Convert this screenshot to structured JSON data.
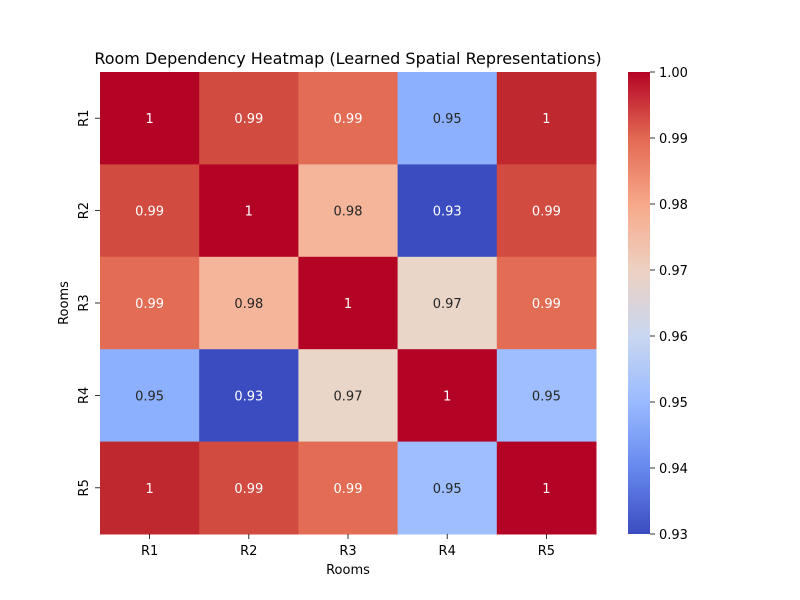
{
  "chart_data": {
    "type": "heatmap",
    "title": "Room Dependency Heatmap (Learned Spatial Representations)",
    "xlabel": "Rooms",
    "ylabel": "Rooms",
    "x_categories": [
      "R1",
      "R2",
      "R3",
      "R4",
      "R5"
    ],
    "y_categories": [
      "R1",
      "R2",
      "R3",
      "R4",
      "R5"
    ],
    "values": [
      [
        1.0,
        0.99,
        0.99,
        0.95,
        1.0
      ],
      [
        0.99,
        1.0,
        0.98,
        0.93,
        0.99
      ],
      [
        0.99,
        0.98,
        1.0,
        0.97,
        0.99
      ],
      [
        0.95,
        0.93,
        0.97,
        1.0,
        0.95
      ],
      [
        1.0,
        0.99,
        0.99,
        0.95,
        1.0
      ]
    ],
    "cell_colors": [
      [
        "#b40426",
        "#d24b40",
        "#e36c55",
        "#8db0fe",
        "#c0282f"
      ],
      [
        "#d24b40",
        "#b40426",
        "#f5b59a",
        "#3b4cc0",
        "#d24b40"
      ],
      [
        "#e36c55",
        "#f5b59a",
        "#b40426",
        "#ead5c9",
        "#e36c55"
      ],
      [
        "#8db0fe",
        "#3b4cc0",
        "#ead5c9",
        "#b40426",
        "#9ebeff"
      ],
      [
        "#c0282f",
        "#d24b40",
        "#e36c55",
        "#9ebeff",
        "#b40426"
      ]
    ],
    "annotations": [
      [
        "1",
        "0.99",
        "0.99",
        "0.95",
        "1"
      ],
      [
        "0.99",
        "1",
        "0.98",
        "0.93",
        "0.99"
      ],
      [
        "0.99",
        "0.98",
        "1",
        "0.97",
        "0.99"
      ],
      [
        "0.95",
        "0.93",
        "0.97",
        "1",
        "0.95"
      ],
      [
        "1",
        "0.99",
        "0.99",
        "0.95",
        "1"
      ]
    ],
    "colorbar": {
      "colormap": "coolwarm",
      "range": [
        0.93,
        1.0
      ],
      "ticks": [
        0.93,
        0.94,
        0.95,
        0.96,
        0.97,
        0.98,
        0.99,
        1.0
      ],
      "tick_labels": [
        "0.93",
        "0.94",
        "0.95",
        "0.96",
        "0.97",
        "0.98",
        "0.99",
        "1.00"
      ],
      "gradient_stops": [
        "#3b4cc0",
        "#6788ee",
        "#9abbff",
        "#c9d7f0",
        "#edd1c2",
        "#f7a889",
        "#e26952",
        "#b40426"
      ]
    }
  }
}
